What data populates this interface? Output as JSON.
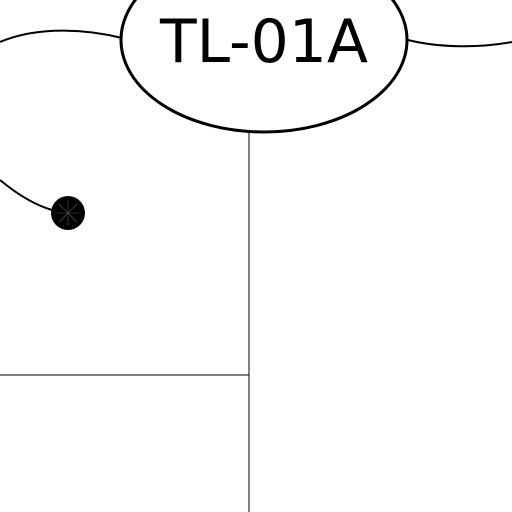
{
  "drawing": {
    "tag": {
      "label": "TL-01A"
    },
    "colors": {
      "line": "#000000",
      "background": "#ffffff"
    }
  }
}
